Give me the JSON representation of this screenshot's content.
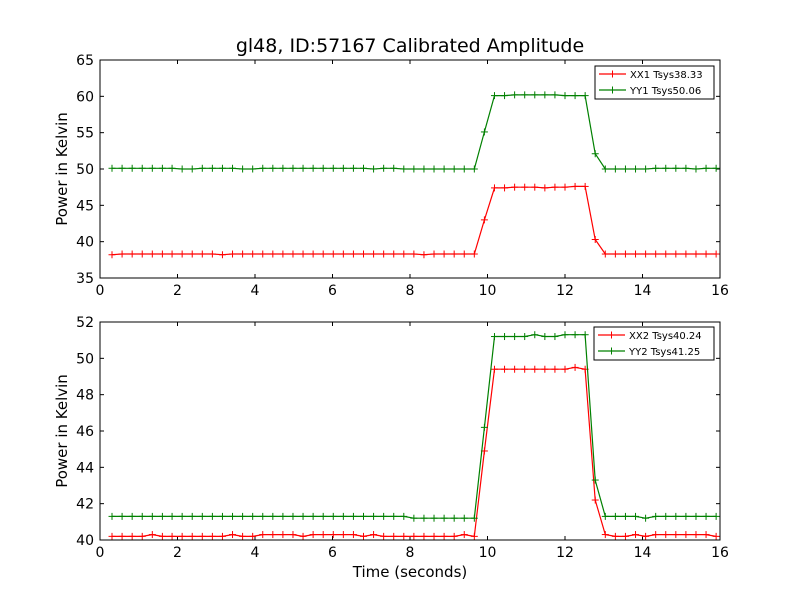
{
  "chart_data": [
    {
      "type": "line",
      "title": "gl48, ID:57167 Calibrated Amplitude",
      "xlabel": "",
      "ylabel": "Power in Kelvin",
      "xlim": [
        0,
        16
      ],
      "ylim": [
        35,
        65
      ],
      "xticks": [
        0,
        2,
        4,
        6,
        8,
        10,
        12,
        14,
        16
      ],
      "yticks": [
        35,
        40,
        45,
        50,
        55,
        60,
        65
      ],
      "legend_position": "top-right",
      "x": [
        0.31,
        0.57,
        0.83,
        1.09,
        1.35,
        1.61,
        1.86,
        2.12,
        2.38,
        2.64,
        2.9,
        3.16,
        3.42,
        3.68,
        3.94,
        4.2,
        4.46,
        4.72,
        4.98,
        5.24,
        5.5,
        5.76,
        6.02,
        6.28,
        6.54,
        6.8,
        7.06,
        7.32,
        7.58,
        7.84,
        8.1,
        8.36,
        8.62,
        8.88,
        9.14,
        9.4,
        9.66,
        9.92,
        10.18,
        10.44,
        10.7,
        10.96,
        11.22,
        11.48,
        11.74,
        12.0,
        12.26,
        12.52,
        12.78,
        13.04,
        13.3,
        13.56,
        13.82,
        14.08,
        14.34,
        14.6,
        14.86,
        15.12,
        15.38,
        15.64,
        15.9
      ],
      "series": [
        {
          "name": "XX1 Tsys38.33",
          "color": "#ff0000",
          "values": [
            38.2,
            38.3,
            38.3,
            38.3,
            38.3,
            38.3,
            38.3,
            38.3,
            38.3,
            38.3,
            38.3,
            38.2,
            38.3,
            38.3,
            38.3,
            38.3,
            38.3,
            38.3,
            38.3,
            38.3,
            38.3,
            38.3,
            38.3,
            38.3,
            38.3,
            38.3,
            38.3,
            38.3,
            38.3,
            38.3,
            38.3,
            38.2,
            38.3,
            38.3,
            38.3,
            38.3,
            38.3,
            43.0,
            47.4,
            47.4,
            47.5,
            47.5,
            47.5,
            47.4,
            47.5,
            47.5,
            47.6,
            47.6,
            40.3,
            38.3,
            38.3,
            38.3,
            38.3,
            38.3,
            38.3,
            38.3,
            38.3,
            38.3,
            38.3,
            38.3,
            38.3
          ]
        },
        {
          "name": "YY1 Tsys50.06",
          "color": "#008000",
          "values": [
            50.1,
            50.1,
            50.1,
            50.1,
            50.1,
            50.1,
            50.1,
            50.0,
            50.0,
            50.1,
            50.1,
            50.1,
            50.1,
            50.0,
            50.0,
            50.1,
            50.1,
            50.1,
            50.1,
            50.1,
            50.1,
            50.1,
            50.1,
            50.1,
            50.1,
            50.1,
            50.0,
            50.1,
            50.1,
            50.0,
            50.0,
            50.0,
            50.0,
            50.0,
            50.0,
            50.0,
            50.0,
            55.1,
            60.1,
            60.1,
            60.2,
            60.2,
            60.2,
            60.2,
            60.2,
            60.1,
            60.1,
            60.1,
            52.1,
            50.0,
            50.0,
            50.0,
            50.0,
            50.0,
            50.1,
            50.1,
            50.1,
            50.1,
            50.0,
            50.1,
            50.1
          ]
        }
      ]
    },
    {
      "type": "line",
      "title": "",
      "xlabel": "Time (seconds)",
      "ylabel": "Power in Kelvin",
      "xlim": [
        0,
        16
      ],
      "ylim": [
        40,
        52
      ],
      "xticks": [
        0,
        2,
        4,
        6,
        8,
        10,
        12,
        14,
        16
      ],
      "yticks": [
        40,
        42,
        44,
        46,
        48,
        50,
        52
      ],
      "legend_position": "top-right",
      "x": [
        0.31,
        0.57,
        0.83,
        1.09,
        1.35,
        1.61,
        1.86,
        2.12,
        2.38,
        2.64,
        2.9,
        3.16,
        3.42,
        3.68,
        3.94,
        4.2,
        4.46,
        4.72,
        4.98,
        5.24,
        5.5,
        5.76,
        6.02,
        6.28,
        6.54,
        6.8,
        7.06,
        7.32,
        7.58,
        7.84,
        8.1,
        8.36,
        8.62,
        8.88,
        9.14,
        9.4,
        9.66,
        9.92,
        10.18,
        10.44,
        10.7,
        10.96,
        11.22,
        11.48,
        11.74,
        12.0,
        12.26,
        12.52,
        12.78,
        13.04,
        13.3,
        13.56,
        13.82,
        14.08,
        14.34,
        14.6,
        14.86,
        15.12,
        15.38,
        15.64,
        15.9
      ],
      "series": [
        {
          "name": "XX2 Tsys40.24",
          "color": "#ff0000",
          "values": [
            40.2,
            40.2,
            40.2,
            40.2,
            40.3,
            40.2,
            40.2,
            40.2,
            40.2,
            40.2,
            40.2,
            40.2,
            40.3,
            40.2,
            40.2,
            40.3,
            40.3,
            40.3,
            40.3,
            40.2,
            40.3,
            40.3,
            40.3,
            40.3,
            40.3,
            40.2,
            40.3,
            40.2,
            40.2,
            40.2,
            40.2,
            40.2,
            40.2,
            40.2,
            40.2,
            40.3,
            40.2,
            44.9,
            49.4,
            49.4,
            49.4,
            49.4,
            49.4,
            49.4,
            49.4,
            49.4,
            49.5,
            49.4,
            42.2,
            40.3,
            40.2,
            40.2,
            40.3,
            40.2,
            40.3,
            40.3,
            40.3,
            40.3,
            40.3,
            40.3,
            40.2
          ]
        },
        {
          "name": "YY2 Tsys41.25",
          "color": "#008000",
          "values": [
            41.3,
            41.3,
            41.3,
            41.3,
            41.3,
            41.3,
            41.3,
            41.3,
            41.3,
            41.3,
            41.3,
            41.3,
            41.3,
            41.3,
            41.3,
            41.3,
            41.3,
            41.3,
            41.3,
            41.3,
            41.3,
            41.3,
            41.3,
            41.3,
            41.3,
            41.3,
            41.3,
            41.3,
            41.3,
            41.3,
            41.2,
            41.2,
            41.2,
            41.2,
            41.2,
            41.2,
            41.2,
            46.2,
            51.2,
            51.2,
            51.2,
            51.2,
            51.3,
            51.2,
            51.2,
            51.3,
            51.3,
            51.3,
            43.3,
            41.3,
            41.3,
            41.3,
            41.3,
            41.2,
            41.3,
            41.3,
            41.3,
            41.3,
            41.3,
            41.3,
            41.3
          ]
        }
      ]
    }
  ]
}
